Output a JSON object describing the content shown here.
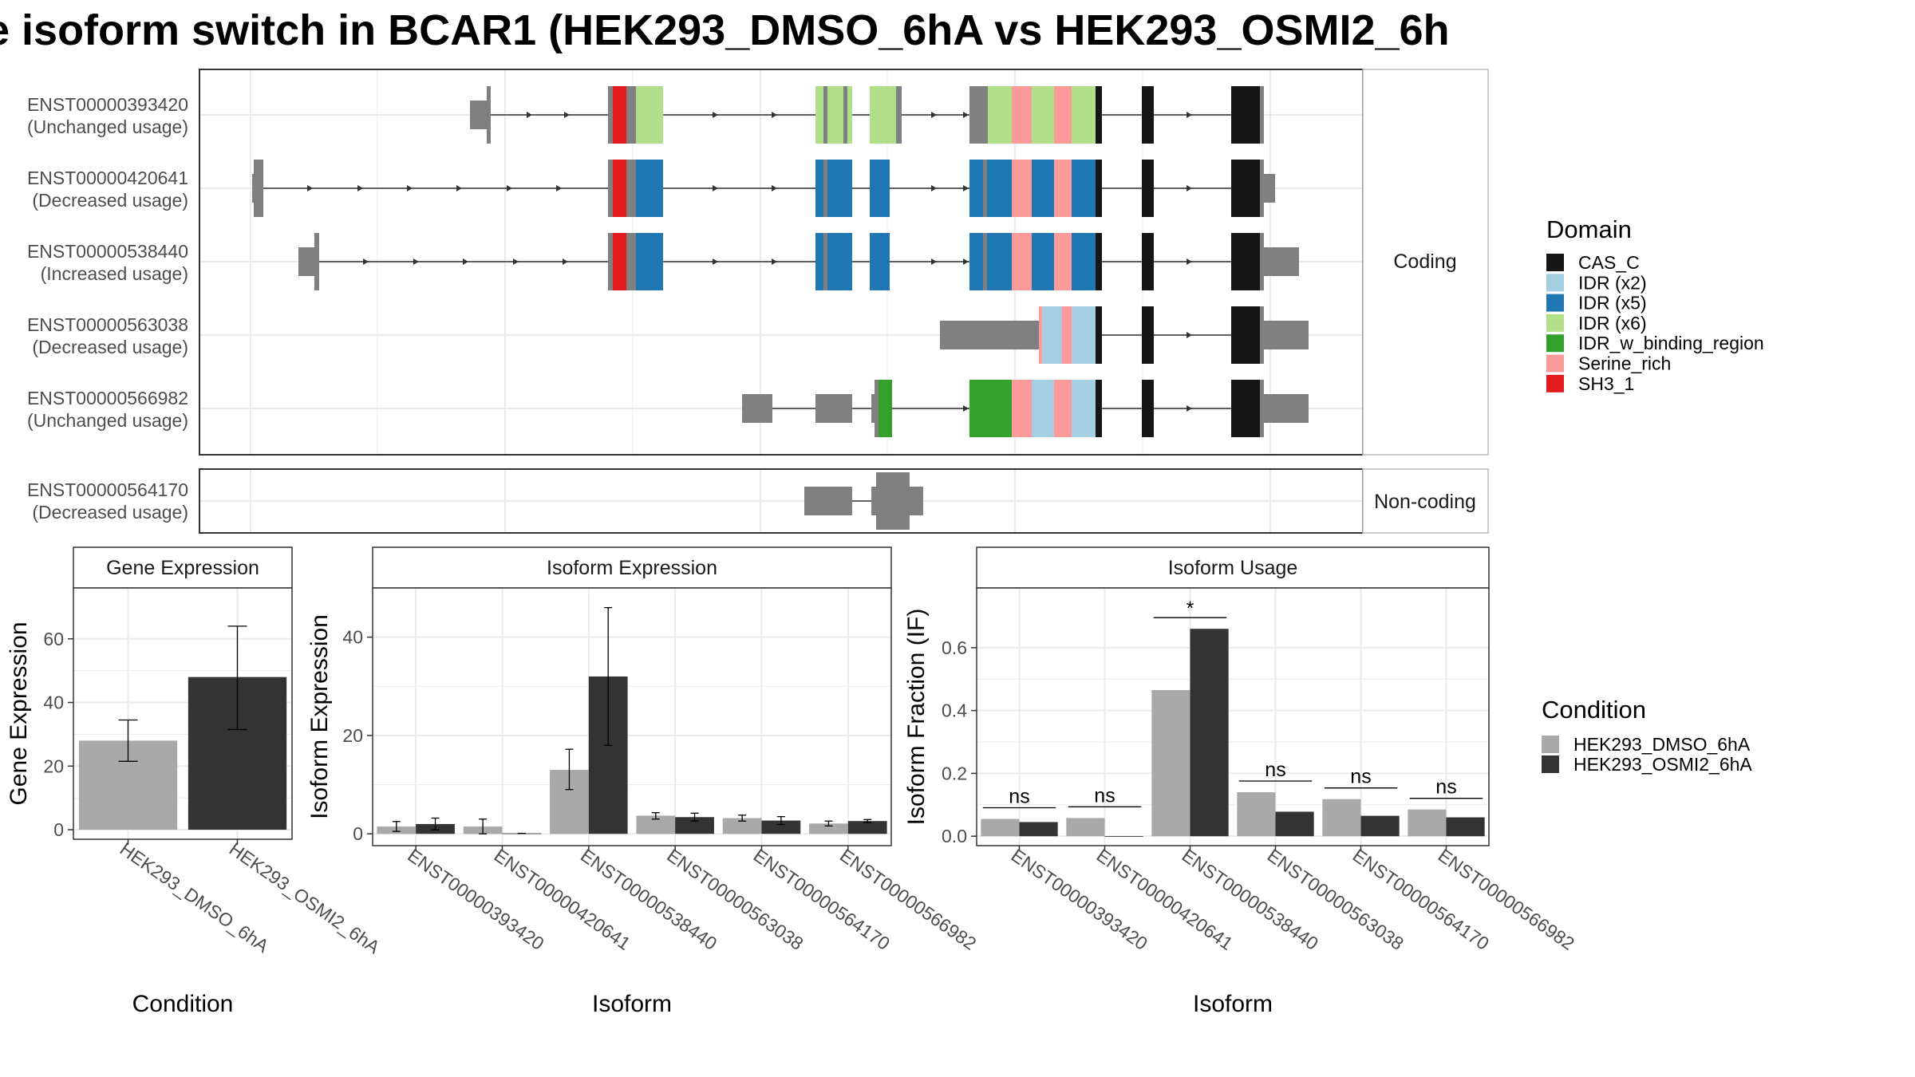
{
  "title": "e isoform switch in BCAR1 (HEK293_DMSO_6hA vs HEK293_OSMI2_6h",
  "colors": {
    "CAS_C": "#161616",
    "IDR (x2)": "#A6CEE3",
    "IDR (x5)": "#1F78B4",
    "IDR (x6)": "#B2DF8A",
    "IDR_w_binding_region": "#33A02C",
    "Serine_rich": "#FB9A99",
    "SH3_1": "#E31A1C",
    "none": "#808080",
    "condition_1": "#A9A9A9",
    "condition_2": "#333333"
  },
  "domain_legend": {
    "title": "Domain",
    "items": [
      "CAS_C",
      "IDR (x2)",
      "IDR (x5)",
      "IDR (x6)",
      "IDR_w_binding_region",
      "Serine_rich",
      "SH3_1"
    ]
  },
  "condition_legend": {
    "title": "Condition",
    "items": [
      "HEK293_DMSO_6hA",
      "HEK293_OSMI2_6hA"
    ]
  },
  "transcripts": {
    "coding_label": "Coding",
    "noncoding_label": "Non-coding",
    "coding": [
      {
        "id": "ENST00000393420",
        "usage": "(Unchanged usage)"
      },
      {
        "id": "ENST00000420641",
        "usage": "(Decreased usage)"
      },
      {
        "id": "ENST00000538440",
        "usage": "(Increased usage)"
      },
      {
        "id": "ENST00000563038",
        "usage": "(Decreased usage)"
      },
      {
        "id": "ENST00000566982",
        "usage": "(Unchanged usage)"
      }
    ],
    "noncoding": [
      {
        "id": "ENST00000564170",
        "usage": "(Decreased usage)"
      }
    ]
  },
  "chart_data": [
    {
      "type": "bar",
      "title": "Gene Expression",
      "xlabel": "Condition",
      "ylabel": "Gene Expression",
      "categories": [
        "HEK293_DMSO_6hA",
        "HEK293_OSMI2_6hA"
      ],
      "values": [
        28,
        48
      ],
      "error_low": [
        21.5,
        31.5
      ],
      "error_high": [
        34.5,
        64
      ],
      "ylim": [
        -3,
        76
      ],
      "yticks": [
        0,
        20,
        40,
        60
      ],
      "grid": true
    },
    {
      "type": "bar",
      "title": "Isoform Expression",
      "xlabel": "Isoform",
      "ylabel": "Isoform Expression",
      "categories": [
        "ENST00000393420",
        "ENST00000420641",
        "ENST00000538440",
        "ENST00000563038",
        "ENST00000564170",
        "ENST00000566982"
      ],
      "series": [
        {
          "name": "HEK293_DMSO_6hA",
          "values": [
            1.5,
            1.5,
            13,
            3.7,
            3.2,
            2.1
          ],
          "error_low": [
            0.5,
            0,
            9,
            3.0,
            2.6,
            1.6
          ],
          "error_high": [
            2.5,
            3.0,
            17.2,
            4.3,
            3.8,
            2.6
          ]
        },
        {
          "name": "HEK293_OSMI2_6hA",
          "values": [
            2.0,
            0.1,
            32,
            3.4,
            2.7,
            2.6
          ],
          "error_low": [
            0.8,
            0.1,
            18,
            2.6,
            1.9,
            2.3
          ],
          "error_high": [
            3.2,
            0.1,
            46,
            4.2,
            3.5,
            2.9
          ]
        }
      ],
      "ylim": [
        -2.4,
        50
      ],
      "yticks": [
        0,
        20,
        40
      ],
      "grid": true
    },
    {
      "type": "bar",
      "title": "Isoform Usage",
      "xlabel": "Isoform",
      "ylabel": "Isoform Fraction (IF)",
      "categories": [
        "ENST00000393420",
        "ENST00000420641",
        "ENST00000538440",
        "ENST00000563038",
        "ENST00000564170",
        "ENST00000566982"
      ],
      "series": [
        {
          "name": "HEK293_DMSO_6hA",
          "values": [
            0.055,
            0.058,
            0.465,
            0.14,
            0.118,
            0.085
          ]
        },
        {
          "name": "HEK293_OSMI2_6hA",
          "values": [
            0.045,
            0.0,
            0.66,
            0.078,
            0.065,
            0.06
          ]
        }
      ],
      "significance": [
        "ns",
        "ns",
        "*",
        "ns",
        "ns",
        "ns"
      ],
      "ylim": [
        -0.03,
        0.79
      ],
      "yticks": [
        "0.0",
        "0.2",
        "0.4",
        "0.6"
      ],
      "grid": true
    }
  ]
}
